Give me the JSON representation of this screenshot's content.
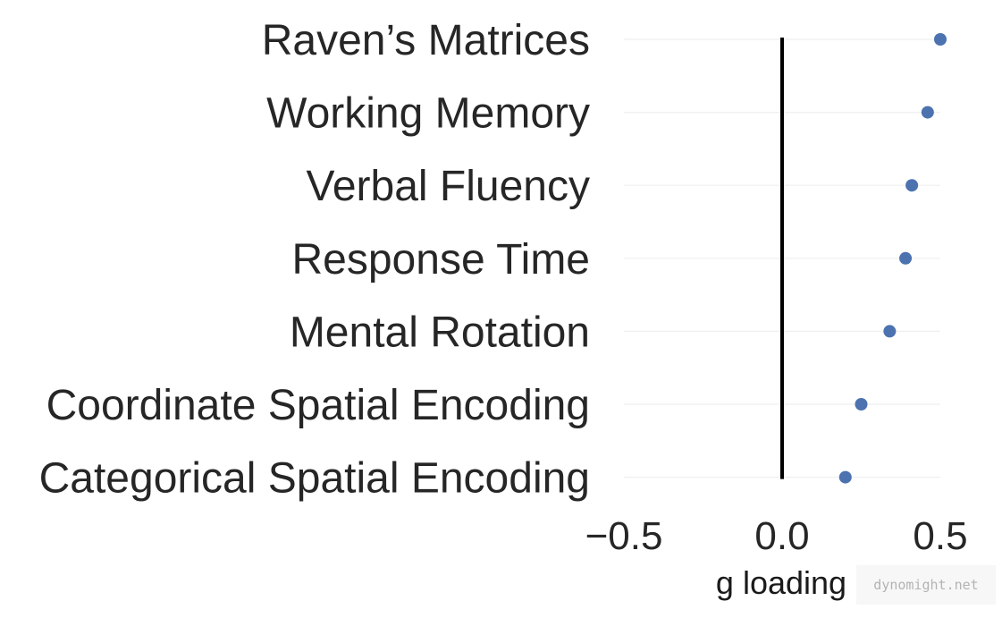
{
  "chart_data": {
    "type": "scatter",
    "categories": [
      "Raven’s Matrices",
      "Working Memory",
      "Verbal Fluency",
      "Response Time",
      "Mental Rotation",
      "Coordinate Spatial Encoding",
      "Categorical Spatial Encoding"
    ],
    "values": [
      0.5,
      0.46,
      0.41,
      0.39,
      0.34,
      0.25,
      0.2
    ],
    "xlabel": "g loading",
    "ylabel": "",
    "xlim": [
      -0.5,
      0.5
    ],
    "xticks": [
      -0.5,
      0.0,
      0.5
    ],
    "xtick_labels": [
      "−0.5",
      "0.0",
      "0.5"
    ],
    "reference_line": 0.0,
    "grid": true,
    "point_color": "#4c72b0",
    "reference_line_color": "#000000"
  },
  "watermark": "dynomight.net"
}
